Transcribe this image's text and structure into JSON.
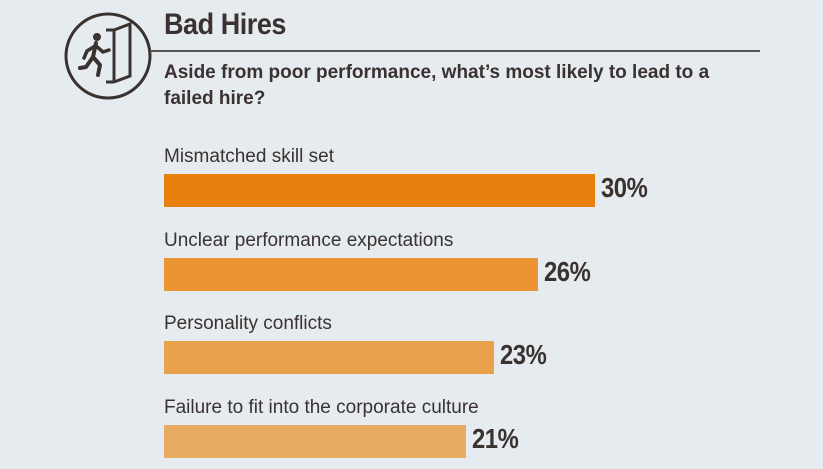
{
  "header": {
    "title": "Bad Hires",
    "subtitle": "Aside from poor performance, what’s most likely to lead to a failed hire?",
    "icon": "exit-door-icon"
  },
  "colors": {
    "background": "#e6ebef",
    "text": "#3a3230",
    "bars": [
      "#e8800e",
      "#ea9433",
      "#eaa14c",
      "#e9ab62"
    ]
  },
  "chart_data": {
    "type": "bar",
    "orientation": "horizontal",
    "title": "Bad Hires",
    "subtitle": "Aside from poor performance, what’s most likely to lead to a failed hire?",
    "categories": [
      "Mismatched skill set",
      "Unclear performance expectations",
      "Personality conflicts",
      "Failure to fit into the corporate culture"
    ],
    "values": [
      30,
      26,
      23,
      21
    ],
    "value_labels": [
      "30%",
      "26%",
      "23%",
      "21%"
    ],
    "unit": "%",
    "xlabel": "",
    "ylabel": "",
    "grid": false
  }
}
